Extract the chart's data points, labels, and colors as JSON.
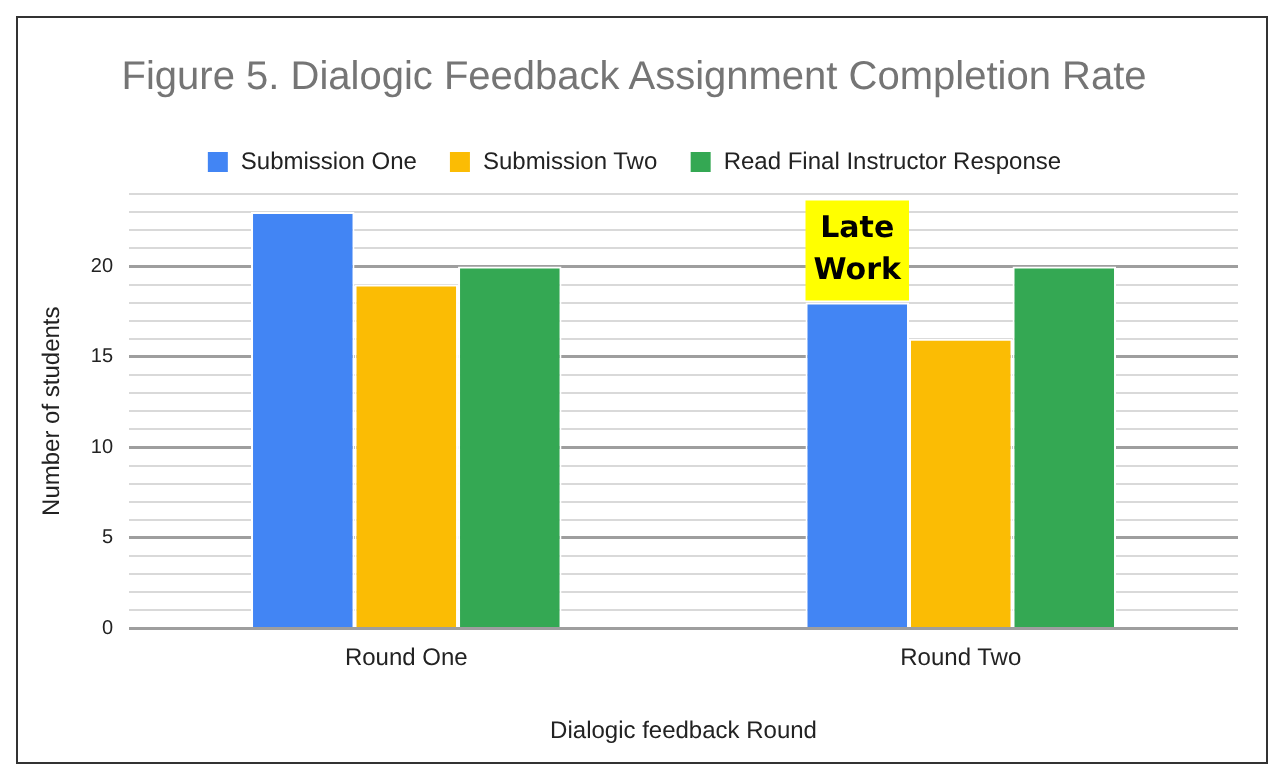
{
  "chart_data": {
    "type": "bar",
    "title": "Figure 5. Dialogic Feedback Assignment Completion Rate",
    "xlabel": "Dialogic feedback Round",
    "ylabel": "Number of students",
    "categories": [
      "Round One",
      "Round Two"
    ],
    "series": [
      {
        "name": "Submission One",
        "color": "#4285f4",
        "values": [
          23,
          18
        ]
      },
      {
        "name": "Submission Two",
        "color": "#fbbc04",
        "values": [
          19,
          16
        ]
      },
      {
        "name": "Read Final Instructor Response",
        "color": "#34a853",
        "values": [
          20,
          20
        ]
      }
    ],
    "ylim": [
      0,
      24
    ],
    "yticks": [
      0,
      {
        "value": 1,
        "label": null
      },
      {
        "value": 2,
        "label": null
      },
      {
        "value": 3,
        "label": null
      },
      {
        "value": 4,
        "label": null
      },
      5,
      {
        "value": 6,
        "label": null
      },
      {
        "value": 7,
        "label": null
      },
      {
        "value": 8,
        "label": null
      },
      {
        "value": 9,
        "label": null
      },
      10,
      {
        "value": 11,
        "label": null
      },
      {
        "value": 12,
        "label": null
      },
      {
        "value": 13,
        "label": null
      },
      {
        "value": 14,
        "label": null
      },
      15,
      {
        "value": 16,
        "label": null
      },
      {
        "value": 17,
        "label": null
      },
      {
        "value": 18,
        "label": null
      },
      {
        "value": 19,
        "label": null
      },
      20,
      {
        "value": 21,
        "label": null
      },
      {
        "value": 22,
        "label": null
      },
      {
        "value": 23,
        "label": null
      },
      {
        "value": 24,
        "label": null
      }
    ],
    "grid": "y",
    "legend": "top",
    "annotations": [
      "Late Work"
    ]
  }
}
